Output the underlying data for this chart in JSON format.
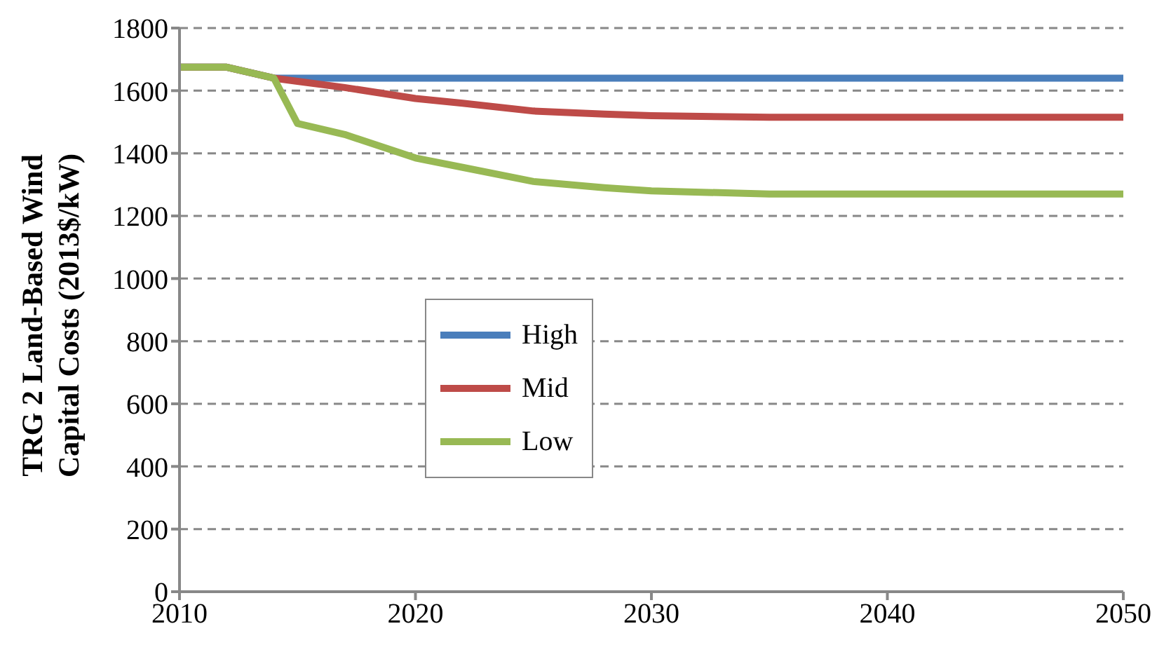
{
  "chart_data": {
    "type": "line",
    "ylabel": "TRG 2 Land-Based Wind Capital Costs (2013$/kW)",
    "x": [
      2010,
      2012,
      2014,
      2015,
      2017,
      2020,
      2022,
      2025,
      2028,
      2030,
      2035,
      2040,
      2045,
      2050
    ],
    "series": [
      {
        "name": "High",
        "color": "#4a7ebb",
        "values": [
          1675,
          1675,
          1640,
          1640,
          1640,
          1640,
          1640,
          1640,
          1640,
          1640,
          1640,
          1640,
          1640,
          1640
        ]
      },
      {
        "name": "Mid",
        "color": "#be4b48",
        "values": [
          1675,
          1675,
          1640,
          1630,
          1610,
          1575,
          1560,
          1535,
          1525,
          1520,
          1515,
          1515,
          1515,
          1515
        ]
      },
      {
        "name": "Low",
        "color": "#98b954",
        "values": [
          1675,
          1675,
          1640,
          1495,
          1460,
          1385,
          1355,
          1310,
          1290,
          1280,
          1270,
          1270,
          1270,
          1270
        ]
      }
    ],
    "xlim": [
      2010,
      2050
    ],
    "xticks": [
      2010,
      2020,
      2030,
      2040,
      2050
    ],
    "ylim": [
      0,
      1800
    ],
    "yticks": [
      0,
      200,
      400,
      600,
      800,
      1000,
      1200,
      1400,
      1600,
      1800
    ],
    "grid": "y",
    "legend": "left",
    "marker": "none",
    "line_style": "solid"
  }
}
